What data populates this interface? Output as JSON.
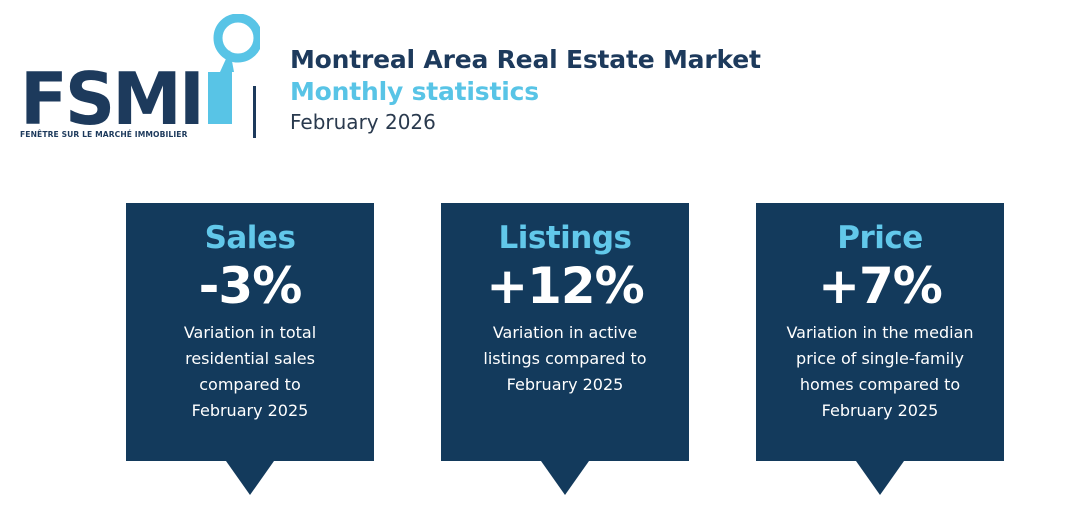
{
  "logo": {
    "wordmark": "FSMI",
    "tagline": "FENÊTRE SUR LE MARCHÉ IMMOBILIER",
    "colors": {
      "primary": "#1d3a5c",
      "accent": "#58c4e6"
    }
  },
  "header": {
    "title": "Montreal Area Real Estate Market",
    "subtitle": "Monthly statistics",
    "date": "February 2026"
  },
  "cards": [
    {
      "title": "Sales",
      "value": "-3%",
      "description": "Variation in total\nresidential sales\ncompared to\nFebruary 2025"
    },
    {
      "title": "Listings",
      "value": "+12%",
      "description": "Variation in active\nlistings compared to\nFebruary 2025"
    },
    {
      "title": "Price",
      "value": "+7%",
      "description": "Variation in the median\nprice of single-family\nhomes compared to\nFebruary 2025"
    }
  ],
  "colors": {
    "card_background": "#133a5c",
    "card_title": "#62c8ea",
    "card_text": "#ffffff"
  }
}
